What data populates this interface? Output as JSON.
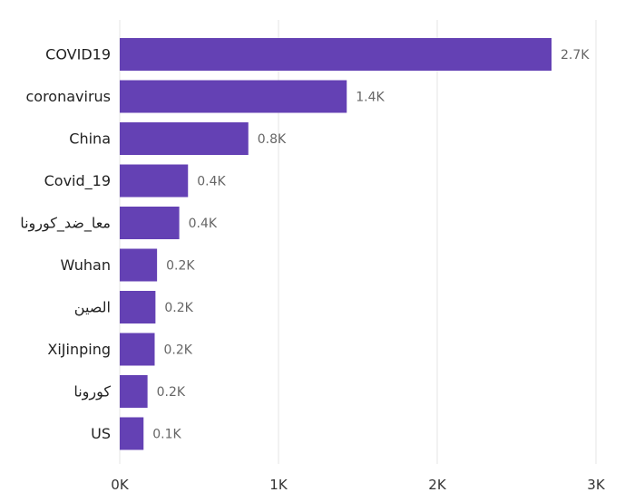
{
  "chart_data": {
    "type": "bar",
    "orientation": "horizontal",
    "categories": [
      "COVID19",
      "coronavirus",
      "China",
      "Covid_19",
      "معا_ضد_كورونا",
      "Wuhan",
      "الصين",
      "XiJinping",
      "كورونا",
      "US"
    ],
    "values": [
      2720,
      1430,
      810,
      430,
      375,
      235,
      225,
      220,
      175,
      150
    ],
    "value_labels": [
      "2.7K",
      "1.4K",
      "0.8K",
      "0.4K",
      "0.4K",
      "0.2K",
      "0.2K",
      "0.2K",
      "0.2K",
      "0.1K"
    ],
    "xticks": [
      0,
      1000,
      2000,
      3000
    ],
    "xtick_labels": [
      "0K",
      "1K",
      "2K",
      "3K"
    ],
    "xlim": [
      0,
      3000
    ],
    "grid": true,
    "legend": "none",
    "bar_color": "#6441B4"
  }
}
